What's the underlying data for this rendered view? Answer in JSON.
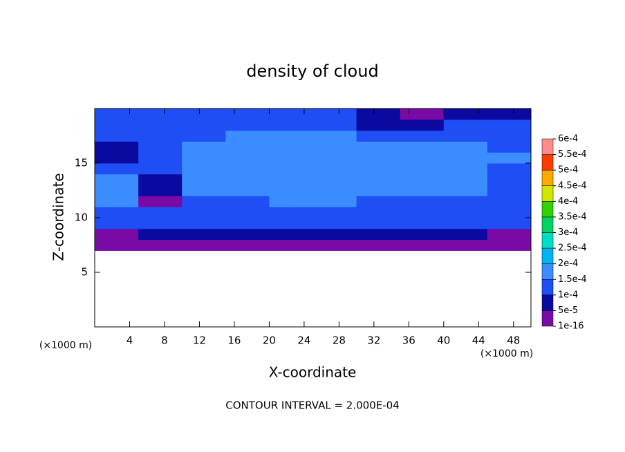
{
  "chart_data": {
    "type": "contour",
    "title": "density of cloud",
    "x_label": "X-coordinate",
    "y_label": "Z-coordinate",
    "x_unit": "(×1000 m)",
    "y_unit": "(×1000 m)",
    "footer": "CONTOUR INTERVAL = 2.000E-04",
    "xlim": [
      0,
      50
    ],
    "ylim": [
      0,
      20
    ],
    "xticks": [
      4,
      8,
      12,
      16,
      20,
      24,
      28,
      32,
      36,
      40,
      44,
      48
    ],
    "yticks": [
      5,
      10,
      15
    ],
    "levels": [
      {
        "value": 1e-16,
        "label": "1e-16"
      },
      {
        "value": 5e-05,
        "label": "5e-5"
      },
      {
        "value": 0.0001,
        "label": "1e-4"
      },
      {
        "value": 0.00015,
        "label": "1.5e-4"
      },
      {
        "value": 0.0002,
        "label": "2e-4"
      },
      {
        "value": 0.00025,
        "label": "2.5e-4"
      },
      {
        "value": 0.0003,
        "label": "3e-4"
      },
      {
        "value": 0.00035,
        "label": "3.5e-4"
      },
      {
        "value": 0.0004,
        "label": "4e-4"
      },
      {
        "value": 0.00045,
        "label": "4.5e-4"
      },
      {
        "value": 0.0005,
        "label": "5e-4"
      },
      {
        "value": 0.00055,
        "label": "5.5e-4"
      },
      {
        "value": 0.0006,
        "label": "6e-4"
      }
    ],
    "colors": [
      "#7a0aa6",
      "#0a0aa0",
      "#1f4ef5",
      "#3a8cff",
      "#00b4f0",
      "#00dcc8",
      "#00d264",
      "#32d200",
      "#d2e600",
      "#ffaa00",
      "#ff3c00",
      "#ff8c8c"
    ],
    "x": [
      2.5,
      7.5,
      12.5,
      17.5,
      22.5,
      27.5,
      32.5,
      37.5,
      42.5,
      47.5
    ],
    "z": [
      7.5,
      8.5,
      9.5,
      10.5,
      11.5,
      12.5,
      13.5,
      14.5,
      15.5,
      16.5,
      17.5,
      18.5,
      19.5
    ],
    "values": [
      [
        3e-05,
        3e-05,
        3e-05,
        3e-05,
        3e-05,
        3e-05,
        3e-05,
        3e-05,
        3e-05,
        3e-05
      ],
      [
        4e-05,
        6e-05,
        6e-05,
        6e-05,
        6e-05,
        6e-05,
        6e-05,
        6e-05,
        6e-05,
        4e-05
      ],
      [
        0.00011,
        0.00011,
        0.00012,
        0.00011,
        0.00011,
        0.00011,
        0.00011,
        0.00011,
        0.00011,
        0.00011
      ],
      [
        0.00013,
        0.00014,
        0.00014,
        0.00013,
        0.00013,
        0.00013,
        0.00013,
        0.00013,
        0.00013,
        0.00012
      ],
      [
        0.00015,
        3e-05,
        0.00014,
        0.00014,
        0.00015,
        0.00015,
        0.00014,
        0.00014,
        0.00014,
        0.00013
      ],
      [
        0.00016,
        6e-05,
        0.00016,
        0.00015,
        0.00015,
        0.00016,
        0.00015,
        0.00015,
        0.00015,
        0.00014
      ],
      [
        0.00015,
        8e-05,
        0.00016,
        0.00016,
        0.00016,
        0.00015,
        0.00015,
        0.00015,
        0.00015,
        0.00014
      ],
      [
        0.00013,
        0.00011,
        0.00016,
        0.00016,
        0.00016,
        0.00016,
        0.00015,
        0.00015,
        0.00015,
        0.00014
      ],
      [
        9e-05,
        0.00013,
        0.00015,
        0.00016,
        0.00016,
        0.00016,
        0.00016,
        0.00016,
        0.00015,
        0.00015
      ],
      [
        7e-05,
        0.00014,
        0.00015,
        0.00016,
        0.00016,
        0.00016,
        0.00016,
        0.00015,
        0.00015,
        0.00014
      ],
      [
        0.00011,
        0.00013,
        0.00014,
        0.00015,
        0.00016,
        0.00015,
        0.00013,
        0.00014,
        0.00014,
        0.00013
      ],
      [
        0.00012,
        0.00012,
        0.00012,
        0.00012,
        0.00012,
        0.00012,
        9e-05,
        7e-05,
        0.00011,
        0.0001
      ],
      [
        0.0001,
        0.0001,
        0.0001,
        0.0001,
        0.0001,
        0.0001,
        6e-05,
        3e-05,
        8e-05,
        8e-05
      ]
    ]
  }
}
